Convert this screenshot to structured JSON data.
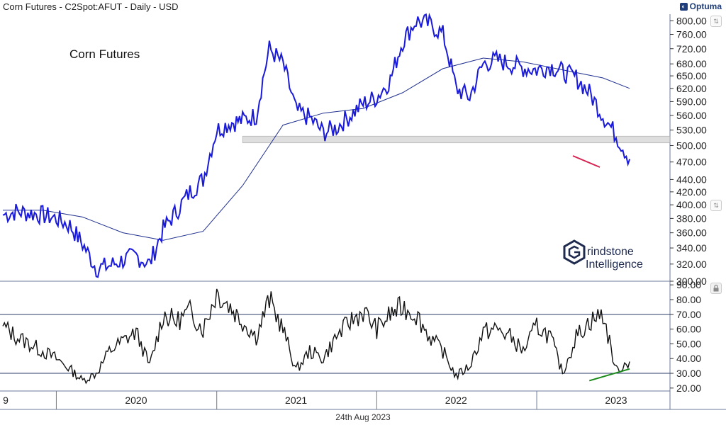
{
  "header": {
    "title": "Corn Futures - C2Spot:AFUT - Daily - USD",
    "brand": "Optuma"
  },
  "footer": {
    "date": "24th Aug 2023"
  },
  "watermark": {
    "line1": "rindstone",
    "line2": "Intelligence",
    "letter": "G"
  },
  "colors": {
    "price": "#1a1adb",
    "ma": "#1f2f8f",
    "rsi": "#111111",
    "support_zone": "#d9d9d9",
    "red_trend": "#d6204f",
    "green_trend": "#1a8a1a",
    "grid": "#2c3e6b"
  },
  "icons": {
    "brand_logo": "optuma-logo-icon",
    "lock": "lock-icon",
    "scroll": "scroll-arrow-icon"
  },
  "chart_data": [
    {
      "type": "line",
      "title": "Corn Futures",
      "ylim": [
        300,
        820
      ],
      "y_ticks": [
        "800.00",
        "760.00",
        "720.00",
        "680.00",
        "650.00",
        "620.00",
        "590.00",
        "560.00",
        "530.00",
        "500.00",
        "470.00",
        "440.00",
        "420.00",
        "400.00",
        "380.00",
        "360.00",
        "340.00",
        "320.00",
        "300.00"
      ],
      "x_ticks": [
        "9",
        "2020",
        "2021",
        "2022",
        "2023"
      ],
      "support_zone": {
        "from": "2021-03",
        "to": "2023-11",
        "low": 505,
        "high": 518
      },
      "series": [
        {
          "role": "price",
          "x": [
            "2019-09",
            "2019-10",
            "2019-11",
            "2019-12",
            "2020-01",
            "2020-02",
            "2020-03",
            "2020-04",
            "2020-05",
            "2020-06",
            "2020-07",
            "2020-08",
            "2020-09",
            "2020-10",
            "2020-11",
            "2020-12",
            "2021-01",
            "2021-02",
            "2021-03",
            "2021-04",
            "2021-05",
            "2021-06",
            "2021-07",
            "2021-08",
            "2021-09",
            "2021-10",
            "2021-11",
            "2021-12",
            "2022-01",
            "2022-02",
            "2022-03",
            "2022-04",
            "2022-05",
            "2022-06",
            "2022-07",
            "2022-08",
            "2022-09",
            "2022-10",
            "2022-11",
            "2022-12",
            "2023-01",
            "2023-02",
            "2023-03",
            "2023-04",
            "2023-05",
            "2023-06",
            "2023-07",
            "2023-08"
          ],
          "values": [
            385,
            390,
            388,
            385,
            380,
            370,
            345,
            315,
            318,
            325,
            330,
            320,
            365,
            390,
            420,
            440,
            530,
            545,
            550,
            560,
            720,
            680,
            570,
            555,
            525,
            535,
            560,
            585,
            600,
            640,
            740,
            800,
            790,
            760,
            620,
            600,
            680,
            690,
            680,
            670,
            665,
            675,
            660,
            645,
            610,
            560,
            520,
            475
          ]
        },
        {
          "role": "moving-average",
          "x": [
            "2019-09",
            "2019-12",
            "2020-03",
            "2020-06",
            "2020-09",
            "2020-12",
            "2021-03",
            "2021-06",
            "2021-09",
            "2021-12",
            "2022-03",
            "2022-06",
            "2022-09",
            "2022-12",
            "2023-03",
            "2023-06",
            "2023-08"
          ],
          "values": [
            392,
            392,
            382,
            360,
            350,
            362,
            430,
            540,
            565,
            575,
            610,
            668,
            695,
            685,
            665,
            645,
            620
          ]
        }
      ]
    },
    {
      "type": "line",
      "role": "oscillator",
      "ylim": [
        18,
        92
      ],
      "y_ticks": [
        "90.00",
        "80.00",
        "70.00",
        "60.00",
        "50.00",
        "40.00",
        "30.00",
        "20.00"
      ],
      "reference_lines": [
        70,
        30
      ],
      "series": [
        {
          "role": "rsi",
          "x": [
            "2019-09",
            "2019-10",
            "2019-11",
            "2019-12",
            "2020-01",
            "2020-02",
            "2020-03",
            "2020-04",
            "2020-05",
            "2020-06",
            "2020-07",
            "2020-08",
            "2020-09",
            "2020-10",
            "2020-11",
            "2020-12",
            "2021-01",
            "2021-02",
            "2021-03",
            "2021-04",
            "2021-05",
            "2021-06",
            "2021-07",
            "2021-08",
            "2021-09",
            "2021-10",
            "2021-11",
            "2021-12",
            "2022-01",
            "2022-02",
            "2022-03",
            "2022-04",
            "2022-05",
            "2022-06",
            "2022-07",
            "2022-08",
            "2022-09",
            "2022-10",
            "2022-11",
            "2022-12",
            "2023-01",
            "2023-02",
            "2023-03",
            "2023-04",
            "2023-05",
            "2023-06",
            "2023-07",
            "2023-08"
          ],
          "values": [
            62,
            55,
            50,
            45,
            40,
            33,
            25,
            30,
            45,
            52,
            58,
            35,
            70,
            65,
            72,
            60,
            85,
            75,
            65,
            55,
            80,
            60,
            32,
            45,
            40,
            55,
            65,
            72,
            60,
            70,
            75,
            70,
            55,
            45,
            28,
            35,
            58,
            60,
            55,
            45,
            62,
            55,
            30,
            55,
            65,
            70,
            32,
            38
          ]
        }
      ],
      "annotations": [
        {
          "type": "trendline",
          "color": "green",
          "from": [
            "2023-05",
            25
          ],
          "to": [
            "2023-08",
            33
          ]
        }
      ]
    }
  ]
}
